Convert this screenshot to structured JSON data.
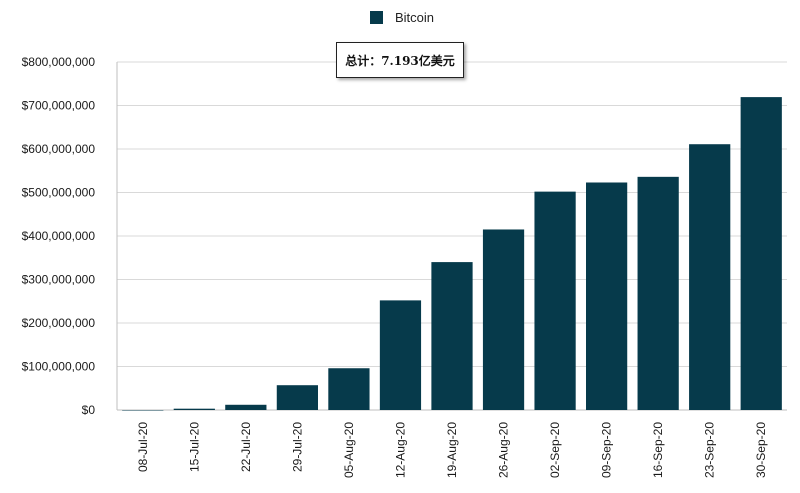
{
  "legend": {
    "label": "Bitcoin",
    "color": "#063a4b"
  },
  "annotation": {
    "text": "总计：7.193亿美元"
  },
  "chart_data": {
    "type": "bar",
    "categories": [
      "08-Jul-20",
      "15-Jul-20",
      "22-Jul-20",
      "29-Jul-20",
      "05-Aug-20",
      "12-Aug-20",
      "19-Aug-20",
      "26-Aug-20",
      "02-Sep-20",
      "09-Sep-20",
      "16-Sep-20",
      "23-Sep-20",
      "30-Sep-20"
    ],
    "series": [
      {
        "name": "Bitcoin",
        "color": "#063a4b",
        "values": [
          0,
          3000000,
          12000000,
          57000000,
          96000000,
          252000000,
          340000000,
          415000000,
          502000000,
          523000000,
          536000000,
          611000000,
          719300000
        ]
      }
    ],
    "ylim": [
      0,
      800000000
    ],
    "yticks": [
      0,
      100000000,
      200000000,
      300000000,
      400000000,
      500000000,
      600000000,
      700000000,
      800000000
    ],
    "ytick_labels": [
      "$0",
      "$100,000,000",
      "$200,000,000",
      "$300,000,000",
      "$400,000,000",
      "$500,000,000",
      "$600,000,000",
      "$700,000,000",
      "$800,000,000"
    ],
    "grid": true,
    "legend_position": "top-center"
  }
}
